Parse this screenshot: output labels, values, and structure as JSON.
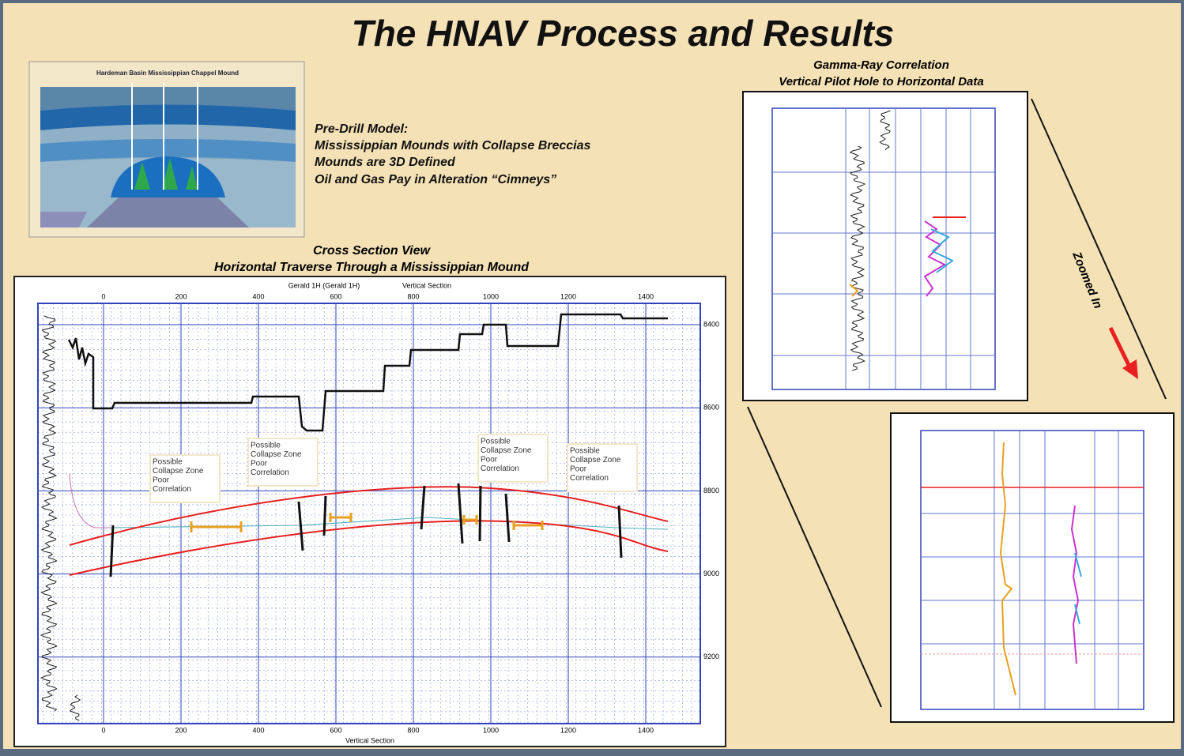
{
  "title": "The HNAV Process and Results",
  "model": {
    "title": "Hardeman Basin Mississippian Chappel Mound"
  },
  "notes": {
    "heading": "Pre-Drill Model:",
    "lines": [
      "Mississippian Mounds with Collapse Breccias",
      "Mounds are 3D Defined",
      "Oil and Gas Pay in Alteration “Cimneys”"
    ]
  },
  "cross_section": {
    "title": "Cross Section View",
    "subtitle": "Horizontal Traverse Through a Mississippian Mound",
    "header": [
      "Gerald 1H (Gerald 1H)",
      "Vertical Section"
    ],
    "x_label": "Vertical Section",
    "x_ticks": [
      "0",
      "200",
      "400",
      "600",
      "800",
      "1000",
      "1200",
      "1400"
    ],
    "y_ticks": [
      "8400",
      "8600",
      "8800",
      "9000",
      "9200"
    ],
    "annotations": [
      [
        "Possible",
        "Collapse Zone",
        "Poor",
        "Correlation"
      ],
      [
        "Possible",
        "Collapse Zone",
        "Poor",
        "Correlation"
      ],
      [
        "Possible",
        "Collapse Zone",
        "Poor",
        "Correlation"
      ],
      [
        "Possible",
        "Collapse Zone",
        "Poor",
        "Correlation"
      ]
    ]
  },
  "gamma": {
    "title": "Gamma-Ray Correlation",
    "subtitle": "Vertical Pilot Hole to Horizontal Data"
  },
  "zoom": "Zoomed In"
}
